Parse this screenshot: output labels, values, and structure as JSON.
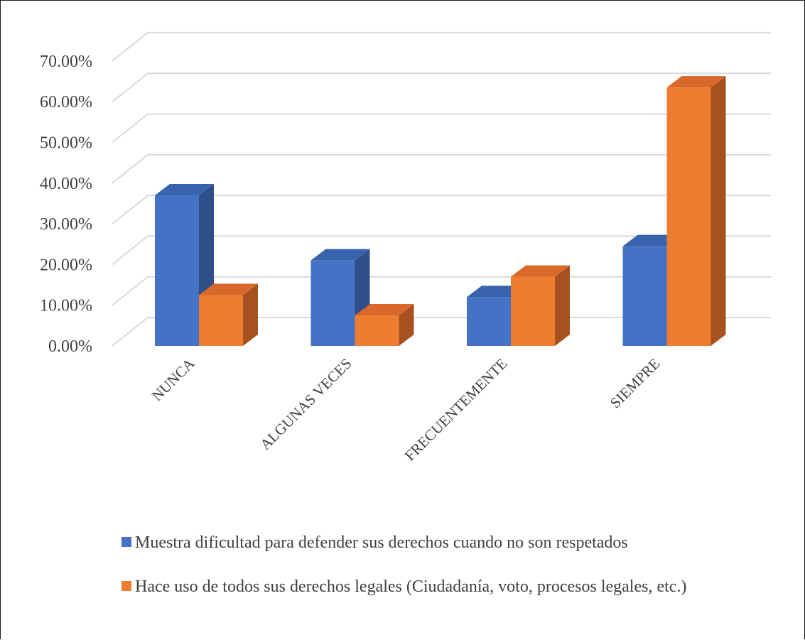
{
  "chart_data": {
    "type": "bar",
    "style": "3d-clustered-column",
    "title": "",
    "xlabel": "",
    "ylabel": "",
    "categories": [
      "NUNCA",
      "ALGUNAS VECES",
      "FRECUENTEMENTE",
      "SIEMPRE"
    ],
    "ylim": [
      0,
      70
    ],
    "yticks": [
      "0.00%",
      "10.00%",
      "20.00%",
      "30.00%",
      "40.00%",
      "50.00%",
      "60.00%",
      "70.00%"
    ],
    "series": [
      {
        "name": "Muestra dificultad para defender sus derechos cuando no son respetados",
        "values": [
          37.0,
          21.0,
          12.0,
          24.5
        ],
        "color": "#4472C4",
        "side_color": "#2E4F8A",
        "top_color": "#3A63AE"
      },
      {
        "name": "Hace uso de todos sus derechos legales (Ciudadanía, voto, procesos legales, etc.)",
        "values": [
          12.5,
          7.5,
          17.0,
          63.5
        ],
        "color": "#ED7D31",
        "side_color": "#A55220",
        "top_color": "#D9682A"
      }
    ],
    "grid": true,
    "legend_position": "bottom"
  }
}
